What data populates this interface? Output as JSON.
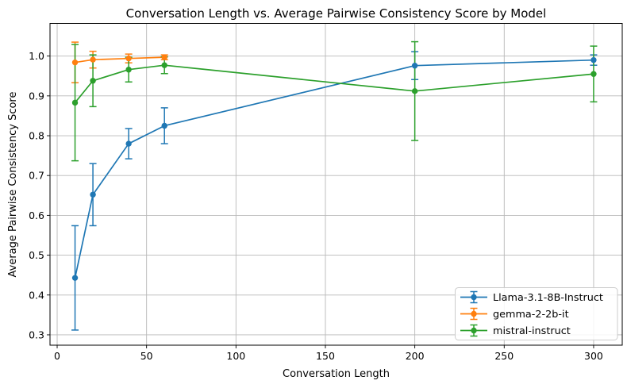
{
  "chart_data": {
    "type": "line",
    "title": "Conversation Length vs. Average Pairwise Consistency Score by Model",
    "xlabel": "Conversation Length",
    "ylabel": "Average Pairwise Consistency Score",
    "xlim": [
      -4,
      316
    ],
    "ylim": [
      0.274,
      1.082
    ],
    "x_ticks": [
      0,
      50,
      100,
      150,
      200,
      250,
      300
    ],
    "y_ticks": [
      0.3,
      0.4,
      0.5,
      0.6,
      0.7,
      0.8,
      0.9,
      1.0
    ],
    "grid": true,
    "legend_position": "lower right",
    "error_bars": true,
    "marker": "circle",
    "series": [
      {
        "name": "Llama-3.1-8B-Instruct",
        "color": "#1f77b4",
        "x": [
          10,
          20,
          40,
          60,
          200,
          300
        ],
        "y": [
          0.443,
          0.652,
          0.78,
          0.825,
          0.976,
          0.99
        ],
        "yerr": [
          0.131,
          0.078,
          0.038,
          0.045,
          0.035,
          0.013
        ]
      },
      {
        "name": "gemma-2-2b-it",
        "color": "#ff7f0e",
        "x": [
          10,
          20,
          40,
          60
        ],
        "y": [
          0.984,
          0.991,
          0.994,
          0.997
        ],
        "yerr": [
          0.051,
          0.021,
          0.011,
          0.006
        ]
      },
      {
        "name": "mistral-instruct",
        "color": "#2ca02c",
        "x": [
          10,
          20,
          40,
          60,
          200,
          300
        ],
        "y": [
          0.883,
          0.938,
          0.966,
          0.977,
          0.912,
          0.955
        ],
        "yerr": [
          0.146,
          0.065,
          0.031,
          0.021,
          0.124,
          0.07
        ]
      }
    ]
  }
}
